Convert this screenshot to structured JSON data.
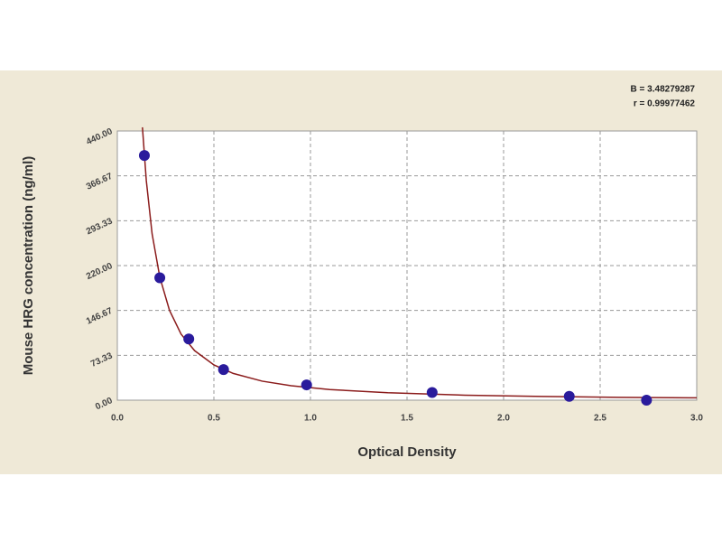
{
  "chart_data": {
    "type": "scatter",
    "x_label": "Optical Density",
    "y_label": "Mouse HRG concentration (ng/ml)",
    "annotations": [
      "B = 3.48279287",
      "r = 0.99977462"
    ],
    "series": [
      {
        "color": "#2a1b9c",
        "x": [
          0.14,
          0.22,
          0.37,
          0.55,
          0.98,
          1.63,
          2.34,
          2.74
        ],
        "values": [
          400,
          200,
          100,
          50,
          25,
          12.5,
          6.25,
          0
        ]
      }
    ],
    "curve": {
      "color": "#8b1c1c",
      "x": [
        0.13,
        0.15,
        0.18,
        0.22,
        0.27,
        0.33,
        0.4,
        0.5,
        0.6,
        0.75,
        0.9,
        1.1,
        1.4,
        1.8,
        2.2,
        2.6,
        3.0
      ],
      "values": [
        446,
        359,
        272,
        201,
        147,
        108,
        81,
        57.7,
        43.7,
        31.1,
        23.6,
        17.4,
        12.1,
        8.2,
        6.1,
        4.7,
        3.8
      ]
    },
    "xlim": [
      0,
      3
    ],
    "ylim": [
      0,
      440
    ],
    "xticks": [
      {
        "value": 0,
        "label": "0.0"
      },
      0.5,
      {
        "value": 1,
        "label": "1.0"
      },
      1.5,
      {
        "value": 2,
        "label": "2.0"
      },
      2.5,
      {
        "value": 3,
        "label": "3.0"
      }
    ],
    "yticks": [
      {
        "value": 0,
        "label": "0.00"
      },
      {
        "value": 73.33,
        "label": "73.33"
      },
      {
        "value": 146.67,
        "label": "146.67"
      },
      {
        "value": 220,
        "label": "220.00"
      },
      {
        "value": 293.33,
        "label": "293.33"
      },
      {
        "value": 366.67,
        "label": "366.67"
      },
      {
        "value": 440,
        "label": "440.00"
      }
    ],
    "grid": true
  }
}
